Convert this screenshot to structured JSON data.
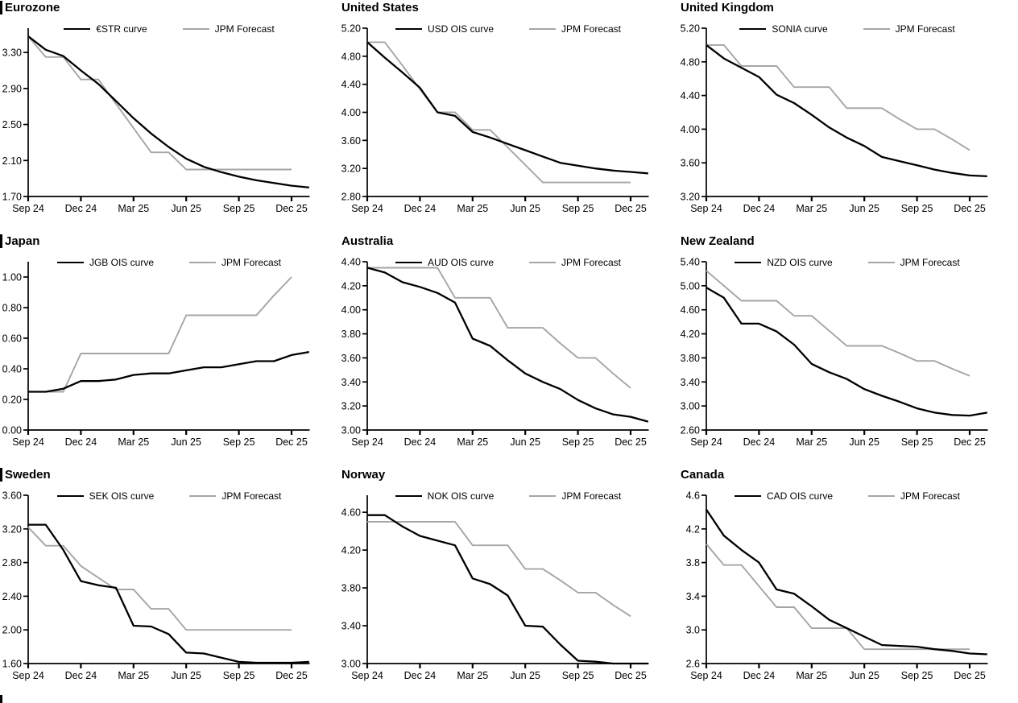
{
  "legend": {
    "curve_label_suffix": "curve",
    "forecast_label": "JPM Forecast"
  },
  "colors": {
    "series_black": "#000000",
    "series_gray": "#a5a5a5",
    "axis": "#000000"
  },
  "chart_data": [
    {
      "type": "line",
      "title": "Eurozone",
      "x_tick_labels": [
        "Sep 24",
        "Dec 24",
        "Mar 25",
        "Jun 25",
        "Sep 25",
        "Dec 25"
      ],
      "x_tick_indices": [
        0,
        3,
        6,
        9,
        12,
        15
      ],
      "ylim": [
        1.7,
        3.57
      ],
      "yticks": [
        1.7,
        2.1,
        2.5,
        2.9,
        3.3
      ],
      "y_decimals": 2,
      "legend_position": "top-center-inside",
      "grid": false,
      "series": [
        {
          "name": "€STR curve",
          "color": "#000000",
          "values": [
            3.48,
            3.33,
            3.26,
            3.1,
            2.95,
            2.76,
            2.57,
            2.4,
            2.25,
            2.12,
            2.03,
            1.97,
            1.92,
            1.88,
            1.85,
            1.82,
            1.8
          ]
        },
        {
          "name": "JPM Forecast",
          "color": "#a5a5a5",
          "values": [
            3.48,
            3.25,
            3.25,
            3.0,
            3.0,
            2.73,
            2.46,
            2.19,
            2.19,
            2.0,
            2.0,
            2.0,
            2.0,
            2.0,
            2.0,
            2.0
          ]
        }
      ]
    },
    {
      "type": "line",
      "title": "United States",
      "x_tick_labels": [
        "Sep 24",
        "Dec 24",
        "Mar 25",
        "Jun 25",
        "Sep 25",
        "Dec 25"
      ],
      "x_tick_indices": [
        0,
        3,
        6,
        9,
        12,
        15
      ],
      "ylim": [
        2.8,
        5.2
      ],
      "yticks": [
        2.8,
        3.2,
        3.6,
        4.0,
        4.4,
        4.8,
        5.2
      ],
      "y_decimals": 2,
      "legend_position": "top-center-inside",
      "grid": false,
      "series": [
        {
          "name": "USD OIS curve",
          "color": "#000000",
          "values": [
            5.0,
            4.78,
            4.57,
            4.35,
            4.0,
            3.95,
            3.72,
            3.64,
            3.55,
            3.46,
            3.37,
            3.28,
            3.24,
            3.2,
            3.17,
            3.15,
            3.13
          ]
        },
        {
          "name": "JPM Forecast",
          "color": "#a5a5a5",
          "values": [
            5.0,
            5.0,
            4.67,
            4.33,
            4.0,
            4.0,
            3.75,
            3.75,
            3.5,
            3.25,
            3.0,
            3.0,
            3.0,
            3.0,
            3.0,
            3.0
          ]
        }
      ]
    },
    {
      "type": "line",
      "title": "United Kingdom",
      "x_tick_labels": [
        "Sep 24",
        "Dec 24",
        "Mar 25",
        "Jun 25",
        "Sep 25",
        "Dec 25"
      ],
      "x_tick_indices": [
        0,
        3,
        6,
        9,
        12,
        15
      ],
      "ylim": [
        3.2,
        5.2
      ],
      "yticks": [
        3.2,
        3.6,
        4.0,
        4.4,
        4.8,
        5.2
      ],
      "y_decimals": 2,
      "legend_position": "top-center-inside",
      "grid": false,
      "series": [
        {
          "name": "SONIA curve",
          "color": "#000000",
          "values": [
            5.0,
            4.84,
            4.73,
            4.62,
            4.41,
            4.31,
            4.17,
            4.02,
            3.9,
            3.8,
            3.67,
            3.62,
            3.57,
            3.52,
            3.48,
            3.45,
            3.44
          ]
        },
        {
          "name": "JPM Forecast",
          "color": "#a5a5a5",
          "values": [
            5.0,
            5.0,
            4.75,
            4.75,
            4.75,
            4.5,
            4.5,
            4.5,
            4.25,
            4.25,
            4.25,
            4.12,
            4.0,
            4.0,
            3.88,
            3.75
          ]
        }
      ]
    },
    {
      "type": "line",
      "title": "Japan",
      "x_tick_labels": [
        "Sep 24",
        "Dec 24",
        "Mar 25",
        "Jun 25",
        "Sep 25",
        "Dec 25"
      ],
      "x_tick_indices": [
        0,
        3,
        6,
        9,
        12,
        15
      ],
      "ylim": [
        0.0,
        1.1
      ],
      "yticks": [
        0.0,
        0.2,
        0.4,
        0.6,
        0.8,
        1.0
      ],
      "y_decimals": 2,
      "legend_position": "top-center-inside",
      "grid": false,
      "series": [
        {
          "name": "JGB OIS curve",
          "color": "#000000",
          "values": [
            0.25,
            0.25,
            0.27,
            0.32,
            0.32,
            0.33,
            0.36,
            0.37,
            0.37,
            0.39,
            0.41,
            0.41,
            0.43,
            0.45,
            0.45,
            0.49,
            0.51
          ]
        },
        {
          "name": "JPM Forecast",
          "color": "#a5a5a5",
          "values": [
            0.25,
            0.25,
            0.25,
            0.5,
            0.5,
            0.5,
            0.5,
            0.5,
            0.5,
            0.75,
            0.75,
            0.75,
            0.75,
            0.75,
            0.88,
            1.0
          ]
        }
      ]
    },
    {
      "type": "line",
      "title": "Australia",
      "x_tick_labels": [
        "Sep 24",
        "Dec 24",
        "Mar 25",
        "Jun 25",
        "Sep 25",
        "Dec 25"
      ],
      "x_tick_indices": [
        0,
        3,
        6,
        9,
        12,
        15
      ],
      "ylim": [
        3.0,
        4.4
      ],
      "yticks": [
        3.0,
        3.2,
        3.4,
        3.6,
        3.8,
        4.0,
        4.2,
        4.4
      ],
      "y_decimals": 2,
      "legend_position": "top-center-inside",
      "grid": false,
      "series": [
        {
          "name": "AUD OIS curve",
          "color": "#000000",
          "values": [
            4.35,
            4.31,
            4.23,
            4.19,
            4.14,
            4.06,
            3.76,
            3.7,
            3.58,
            3.47,
            3.4,
            3.34,
            3.25,
            3.18,
            3.13,
            3.11,
            3.07
          ]
        },
        {
          "name": "JPM Forecast",
          "color": "#a5a5a5",
          "values": [
            4.35,
            4.35,
            4.35,
            4.35,
            4.35,
            4.1,
            4.1,
            4.1,
            3.85,
            3.85,
            3.85,
            3.72,
            3.6,
            3.6,
            3.47,
            3.35
          ]
        }
      ]
    },
    {
      "type": "line",
      "title": "New Zealand",
      "x_tick_labels": [
        "Sep 24",
        "Dec 24",
        "Mar 25",
        "Jun 25",
        "Sep 25",
        "Dec 25"
      ],
      "x_tick_indices": [
        0,
        3,
        6,
        9,
        12,
        15
      ],
      "ylim": [
        2.6,
        5.4
      ],
      "yticks": [
        2.6,
        3.0,
        3.4,
        3.8,
        4.2,
        4.6,
        5.0,
        5.4
      ],
      "y_decimals": 2,
      "legend_position": "top-center-inside",
      "grid": false,
      "series": [
        {
          "name": "NZD OIS curve",
          "color": "#000000",
          "values": [
            4.97,
            4.8,
            4.37,
            4.37,
            4.24,
            4.02,
            3.7,
            3.56,
            3.45,
            3.28,
            3.17,
            3.07,
            2.96,
            2.89,
            2.85,
            2.84,
            2.89
          ]
        },
        {
          "name": "JPM Forecast",
          "color": "#a5a5a5",
          "values": [
            5.25,
            5.0,
            4.75,
            4.75,
            4.75,
            4.5,
            4.5,
            4.25,
            4.0,
            4.0,
            4.0,
            3.88,
            3.75,
            3.75,
            3.62,
            3.5
          ]
        }
      ]
    },
    {
      "type": "line",
      "title": "Sweden",
      "x_tick_labels": [
        "Sep 24",
        "Dec 24",
        "Mar 25",
        "Jun 25",
        "Sep 25",
        "Dec 25"
      ],
      "x_tick_indices": [
        0,
        3,
        6,
        9,
        12,
        15
      ],
      "ylim": [
        1.6,
        3.6
      ],
      "yticks": [
        1.6,
        2.0,
        2.4,
        2.8,
        3.2,
        3.6
      ],
      "y_decimals": 2,
      "legend_position": "top-center-inside",
      "grid": false,
      "series": [
        {
          "name": "SEK OIS curve",
          "color": "#000000",
          "values": [
            3.25,
            3.25,
            2.95,
            2.58,
            2.53,
            2.5,
            2.05,
            2.04,
            1.95,
            1.73,
            1.72,
            1.67,
            1.62,
            1.61,
            1.61,
            1.61,
            1.62
          ]
        },
        {
          "name": "JPM Forecast",
          "color": "#a5a5a5",
          "values": [
            3.22,
            3.0,
            3.0,
            2.76,
            2.62,
            2.48,
            2.48,
            2.25,
            2.25,
            2.0,
            2.0,
            2.0,
            2.0,
            2.0,
            2.0,
            2.0
          ]
        }
      ]
    },
    {
      "type": "line",
      "title": "Norway",
      "x_tick_labels": [
        "Sep 24",
        "Dec 24",
        "Mar 25",
        "Jun 25",
        "Sep 25",
        "Dec 25"
      ],
      "x_tick_indices": [
        0,
        3,
        6,
        9,
        12,
        15
      ],
      "ylim": [
        3.0,
        4.78
      ],
      "yticks": [
        3.0,
        3.4,
        3.8,
        4.2,
        4.6
      ],
      "y_decimals": 2,
      "legend_position": "top-center-inside",
      "grid": false,
      "series": [
        {
          "name": "NOK OIS curve",
          "color": "#000000",
          "values": [
            4.57,
            4.57,
            4.45,
            4.35,
            4.3,
            4.25,
            3.9,
            3.84,
            3.72,
            3.4,
            3.39,
            3.2,
            3.03,
            3.02,
            3.0,
            3.0,
            3.0
          ]
        },
        {
          "name": "JPM Forecast",
          "color": "#a5a5a5",
          "values": [
            4.5,
            4.5,
            4.5,
            4.5,
            4.5,
            4.5,
            4.25,
            4.25,
            4.25,
            4.0,
            4.0,
            3.88,
            3.75,
            3.75,
            3.62,
            3.5
          ]
        }
      ]
    },
    {
      "type": "line",
      "title": "Canada",
      "x_tick_labels": [
        "Sep 24",
        "Dec 24",
        "Mar 25",
        "Jun 25",
        "Sep 25",
        "Dec 25"
      ],
      "x_tick_indices": [
        0,
        3,
        6,
        9,
        12,
        15
      ],
      "ylim": [
        2.6,
        4.6
      ],
      "yticks": [
        2.6,
        3.0,
        3.4,
        3.8,
        4.2,
        4.6
      ],
      "y_decimals": 1,
      "legend_position": "top-center-inside",
      "grid": false,
      "series": [
        {
          "name": "CAD OIS curve",
          "color": "#000000",
          "values": [
            4.43,
            4.12,
            3.95,
            3.8,
            3.48,
            3.43,
            3.28,
            3.12,
            3.02,
            2.92,
            2.82,
            2.81,
            2.8,
            2.77,
            2.75,
            2.72,
            2.71
          ]
        },
        {
          "name": "JPM Forecast",
          "color": "#a5a5a5",
          "values": [
            4.02,
            3.77,
            3.77,
            3.52,
            3.27,
            3.27,
            3.02,
            3.02,
            3.02,
            2.77,
            2.77,
            2.77,
            2.77,
            2.77,
            2.77,
            2.77
          ]
        }
      ]
    }
  ]
}
